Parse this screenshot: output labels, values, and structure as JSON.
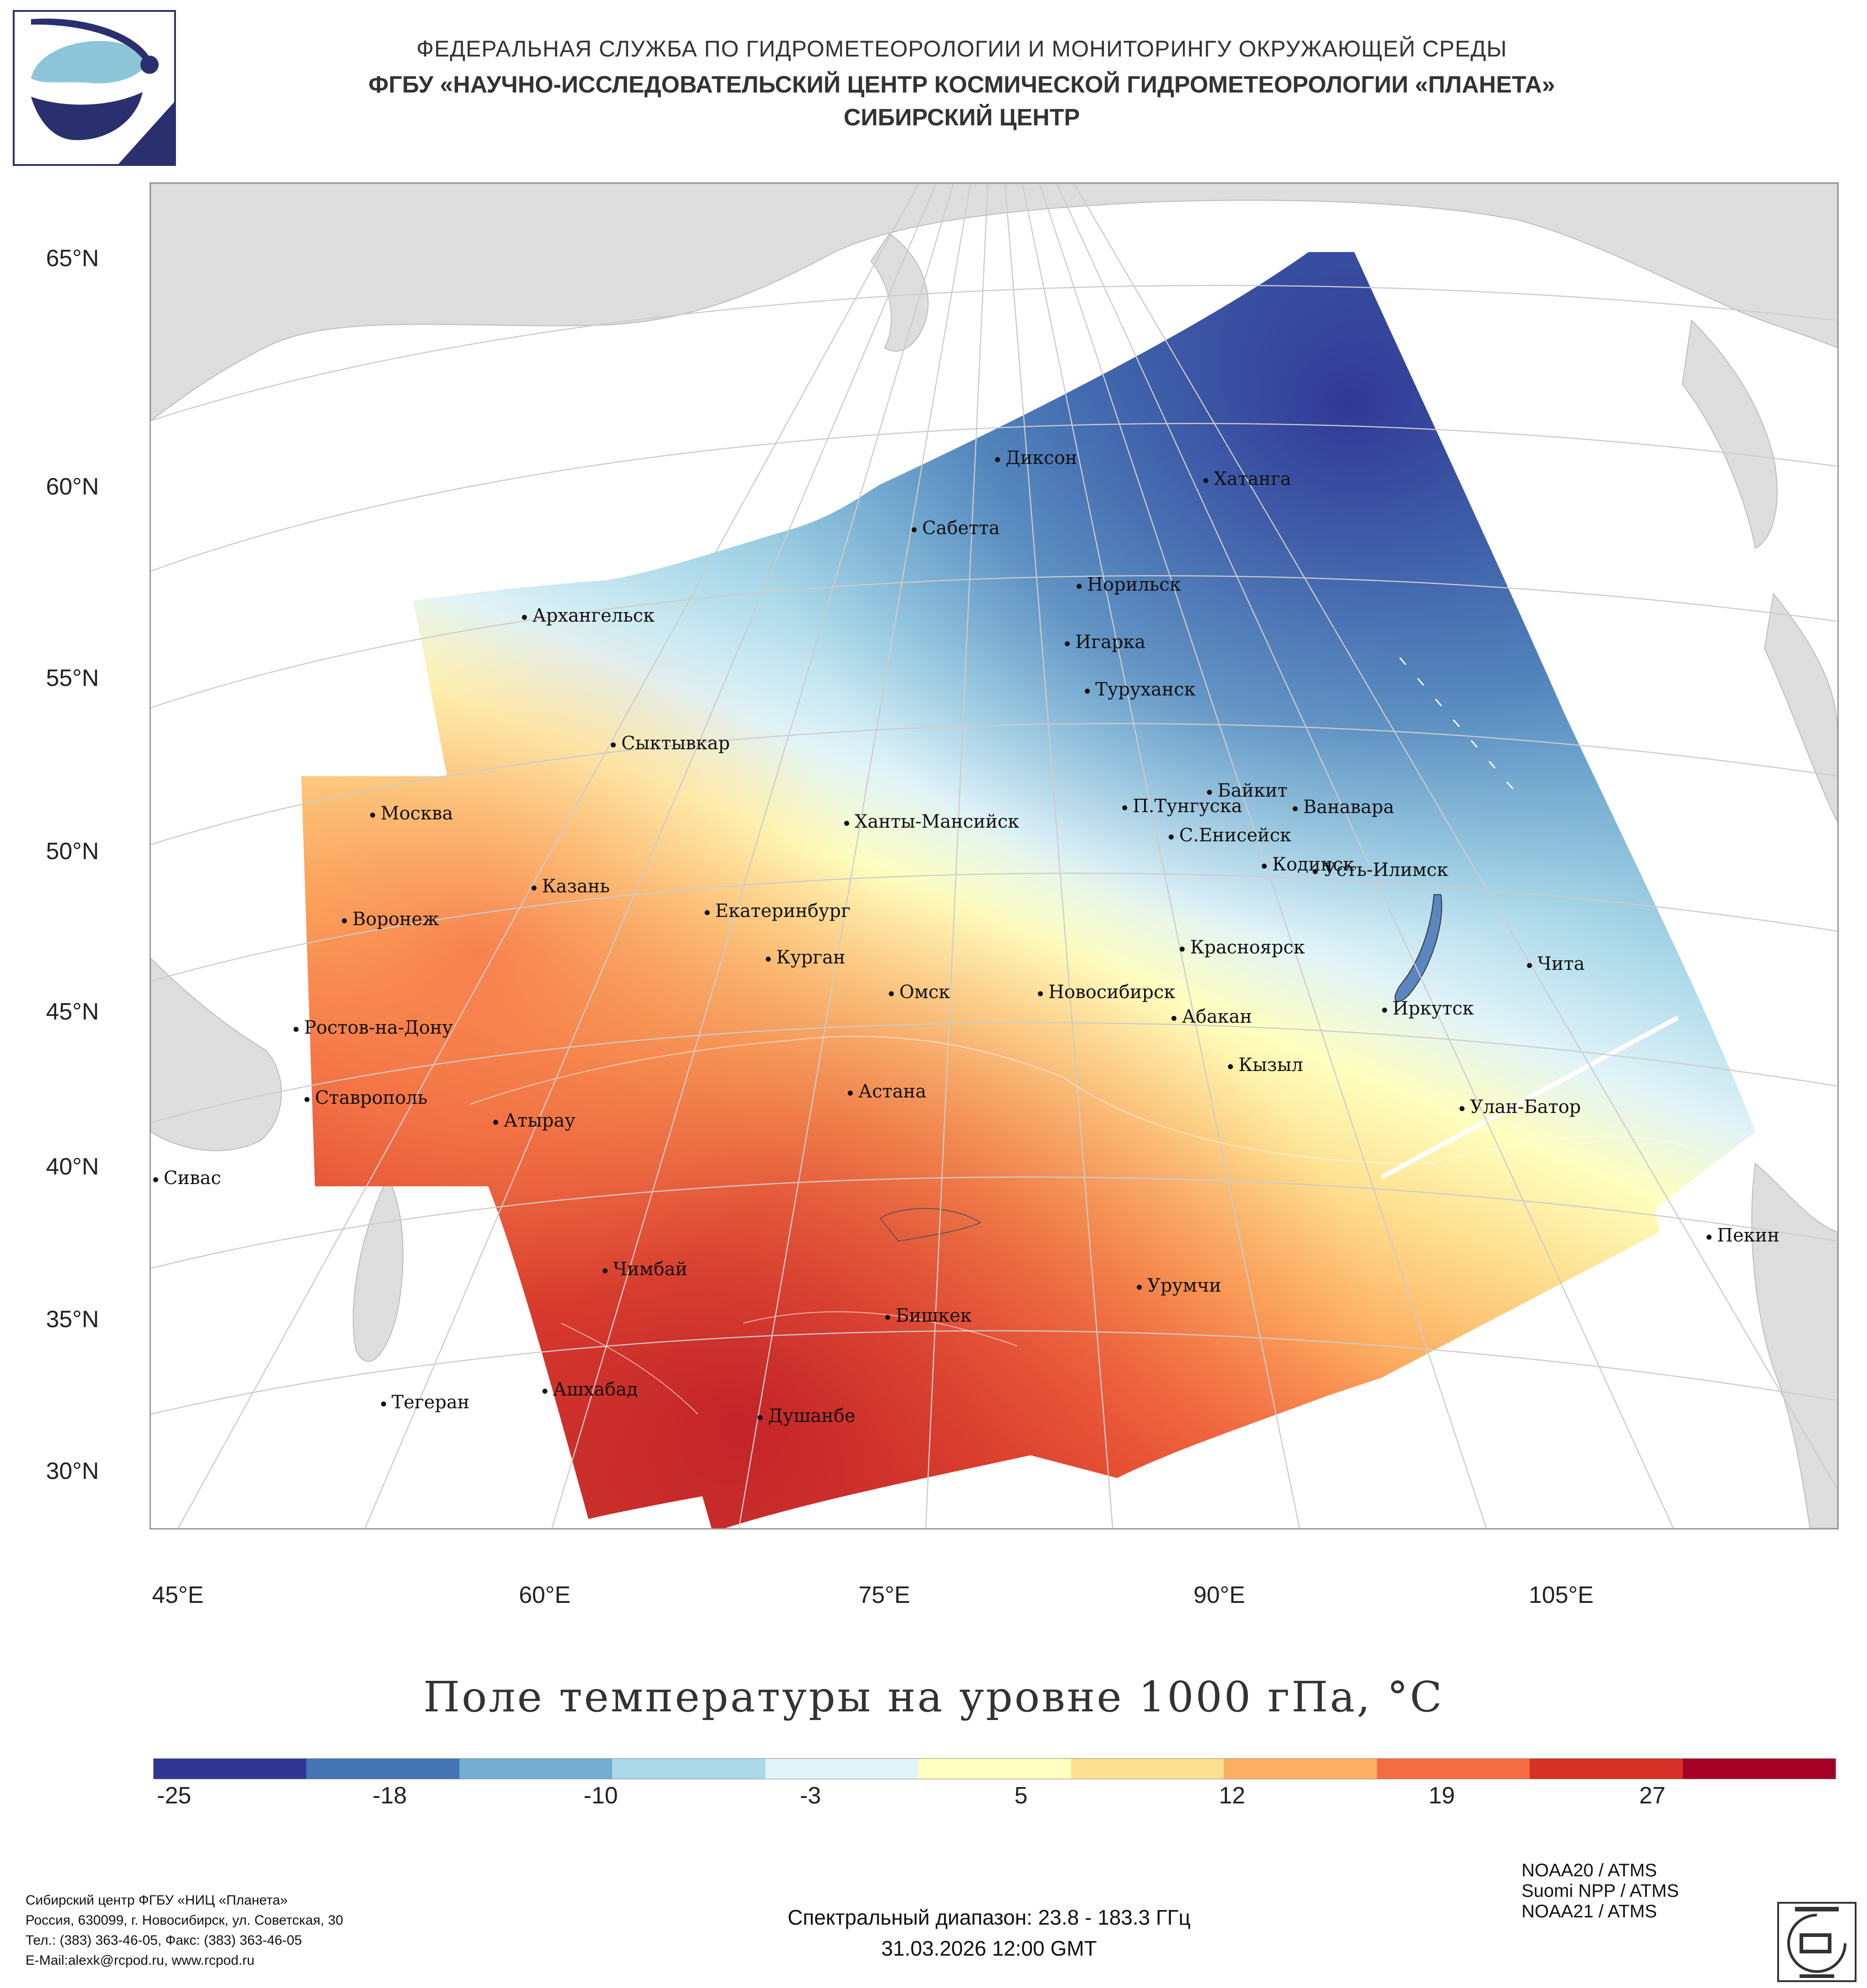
{
  "header": {
    "line1": "ФЕДЕРАЛЬНАЯ СЛУЖБА ПО ГИДРОМЕТЕОРОЛОГИИ И МОНИТОРИНГУ ОКРУЖАЮЩЕЙ СРЕДЫ",
    "line2": "ФГБУ «НАУЧНО-ИССЛЕДОВАТЕЛЬСКИЙ ЦЕНТР КОСМИЧЕСКОЙ ГИДРОМЕТЕОРОЛОГИИ «ПЛАНЕТА»",
    "line3": "СИБИРСКИЙ ЦЕНТР"
  },
  "map": {
    "title": "Поле температуры на уровне 1000 гПа, °С",
    "lat_labels": [
      "65°N",
      "60°N",
      "55°N",
      "50°N",
      "45°N",
      "40°N",
      "35°N",
      "30°N"
    ],
    "lon_labels": [
      "45°E",
      "60°E",
      "75°E",
      "90°E",
      "105°E"
    ],
    "cities": [
      "Диксон",
      "Хатанга",
      "Сабетта",
      "Норильск",
      "Архангельск",
      "Игарка",
      "Туруханск",
      "Сыктывкар",
      "Байкит",
      "Москва",
      "П.Тунгуска",
      "Ванавара",
      "Ханты-Мансийск",
      "С.Енисейск",
      "Кодинск",
      "Усть-Илимск",
      "Казань",
      "Екатеринбург",
      "Воронеж",
      "Красноярск",
      "Курган",
      "Чита",
      "Омск",
      "Новосибирск",
      "Иркутск",
      "Ростов-на-Дону",
      "Абакан",
      "Кызыл",
      "Астана",
      "Ставрополь",
      "Улан-Батор",
      "Атырау",
      "Сивас",
      "Пекин",
      "Чимбай",
      "Урумчи",
      "Бишкек",
      "Ашхабад",
      "Тегеран",
      "Душанбе"
    ]
  },
  "colorbar": {
    "ticks": [
      "-25",
      "-18",
      "-10",
      "-3",
      "5",
      "12",
      "19",
      "27"
    ],
    "colors": [
      "#313695",
      "#4575b4",
      "#74add1",
      "#abd9e9",
      "#e0f3f8",
      "#ffffbf",
      "#fee090",
      "#fdae61",
      "#f46d43",
      "#d73027",
      "#a50026"
    ]
  },
  "footer": {
    "satellites": [
      "NOAA20 / ATMS",
      "Suomi NPP / ATMS",
      "NOAA21 / ATMS"
    ],
    "contact": [
      "Сибирский центр ФГБУ «НИЦ «Планета»",
      "Россия, 630099, г. Новосибирск, ул. Советская, 30",
      "Тел.: (383) 363-46-05, Факс: (383) 363-46-05",
      "E-Mail:alexk@rcpod.ru, www.rcpod.ru"
    ],
    "spectral": "Спектральный диапазон: 23.8 - 183.3 ГГц",
    "datetime": "31.03.2026 12:00 GMT"
  }
}
